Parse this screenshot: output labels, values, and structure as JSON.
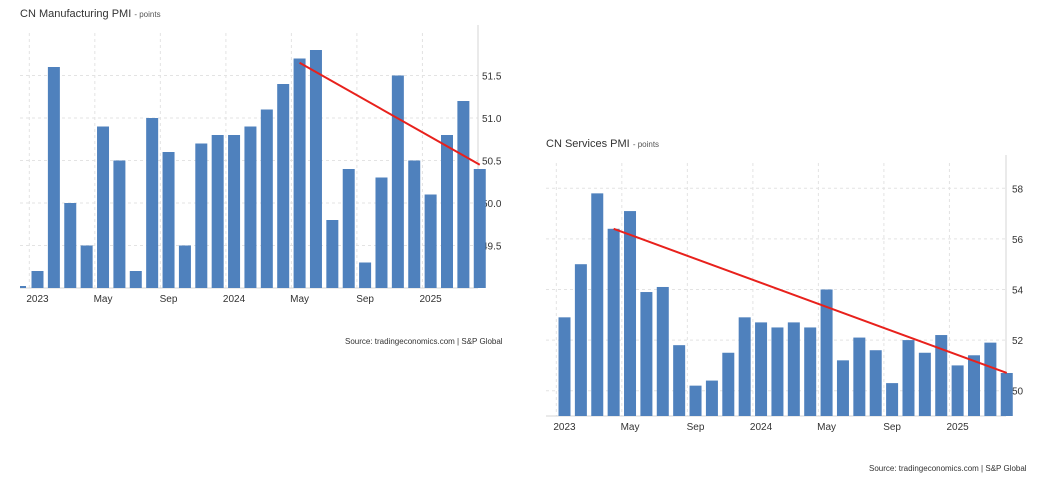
{
  "colors": {
    "bar": "#4f81bd",
    "trend": "#e8211c",
    "grid": "#e3e3e3",
    "axis": "#d6d6d6",
    "text": "#333333"
  },
  "chart_data": [
    {
      "type": "bar",
      "title": "CN Manufacturing PMI",
      "unit": "points",
      "source": "Source: tradingeconomics.com | S&P Global",
      "x": [
        "2023-01",
        "2023-02",
        "2023-03",
        "2023-04",
        "2023-05",
        "2023-06",
        "2023-07",
        "2023-08",
        "2023-09",
        "2023-10",
        "2023-11",
        "2023-12",
        "2024-01",
        "2024-02",
        "2024-03",
        "2024-04",
        "2024-05",
        "2024-06",
        "2024-07",
        "2024-08",
        "2024-09",
        "2024-10",
        "2024-11",
        "2024-12",
        "2025-01",
        "2025-02",
        "2025-03"
      ],
      "values": [
        49.2,
        51.6,
        50.0,
        49.5,
        50.9,
        50.5,
        49.2,
        51.0,
        50.6,
        49.5,
        50.7,
        50.8,
        50.8,
        50.9,
        51.1,
        51.4,
        51.7,
        51.8,
        49.8,
        50.4,
        49.3,
        50.3,
        51.5,
        50.5,
        50.1,
        50.8,
        51.2
      ],
      "extra_first_value": 49.0,
      "last_value": 50.4,
      "y_ticks": [
        "49.5",
        "50.0",
        "50.5",
        "51.0",
        "51.5"
      ],
      "ylim": [
        49.0,
        52.0
      ],
      "x_tick_labels": [
        {
          "label": "2023",
          "x": "2023-01"
        },
        {
          "label": "May",
          "x": "2023-05"
        },
        {
          "label": "Sep",
          "x": "2023-09"
        },
        {
          "label": "2024",
          "x": "2024-01"
        },
        {
          "label": "May",
          "x": "2024-05"
        },
        {
          "label": "Sep",
          "x": "2024-09"
        },
        {
          "label": "2025",
          "x": "2025-01"
        }
      ],
      "trend": {
        "from": {
          "x": "2024-05",
          "y": 51.65
        },
        "to": {
          "x": "2025-04",
          "y": 50.45
        }
      },
      "grid": true
    },
    {
      "type": "bar",
      "title": "CN Services PMI",
      "unit": "points",
      "source": "Source: tradingeconomics.com | S&P Global",
      "x": [
        "2023-01",
        "2023-02",
        "2023-03",
        "2023-04",
        "2023-05",
        "2023-06",
        "2023-07",
        "2023-08",
        "2023-09",
        "2023-10",
        "2023-11",
        "2023-12",
        "2024-01",
        "2024-02",
        "2024-03",
        "2024-04",
        "2024-05",
        "2024-06",
        "2024-07",
        "2024-08",
        "2024-09",
        "2024-10",
        "2024-11",
        "2024-12",
        "2025-01",
        "2025-02",
        "2025-03",
        "2025-04"
      ],
      "values": [
        52.9,
        55.0,
        57.8,
        56.4,
        57.1,
        53.9,
        54.1,
        51.8,
        50.2,
        50.4,
        51.5,
        52.9,
        52.7,
        52.5,
        52.7,
        52.5,
        54.0,
        51.2,
        52.1,
        51.6,
        50.3,
        52.0,
        51.5,
        52.2,
        51.0,
        51.4,
        51.9,
        50.7
      ],
      "y_ticks": [
        "50",
        "52",
        "54",
        "56",
        "58"
      ],
      "ylim": [
        49.0,
        59.0
      ],
      "x_tick_labels": [
        {
          "label": "2023",
          "x": "2023-01"
        },
        {
          "label": "May",
          "x": "2023-05"
        },
        {
          "label": "Sep",
          "x": "2023-09"
        },
        {
          "label": "2024",
          "x": "2024-01"
        },
        {
          "label": "May",
          "x": "2024-05"
        },
        {
          "label": "Sep",
          "x": "2024-09"
        },
        {
          "label": "2025",
          "x": "2025-01"
        }
      ],
      "trend": {
        "from": {
          "x": "2023-04",
          "y": 56.4
        },
        "to": {
          "x": "2025-04",
          "y": 50.7
        }
      },
      "grid": true
    }
  ]
}
